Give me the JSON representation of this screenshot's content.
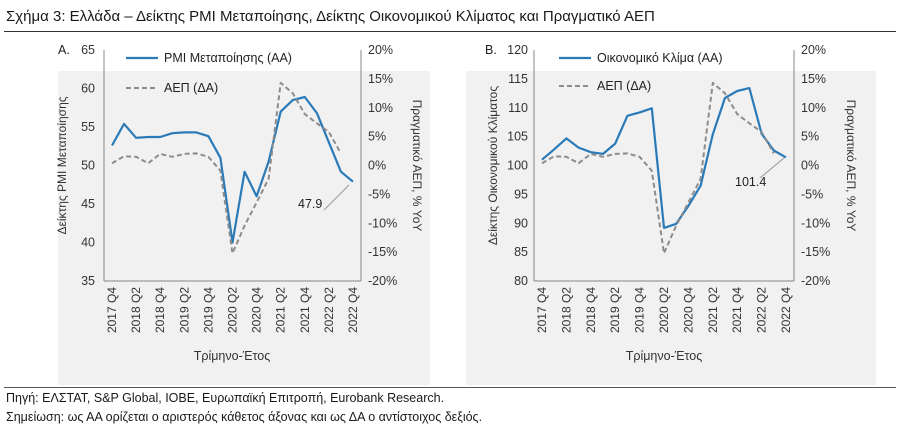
{
  "figure_title": "Σχήμα 3: Ελλάδα – Δείκτης PMI Μεταποίησης, Δείκτης Οικονομικού Κλίματος και Πραγματικό ΑΕΠ",
  "source_note": "Πηγή: ΕΛΣΤΑΤ, S&P Global, IOBE, Ευρωπαϊκή Επιτροπή, Eurobank Research.",
  "remark_note": "Σημείωση: ως ΑΑ ορίζεται ο αριστερός κάθετος άξονας και ως ΔΑ ο αντίστοιχος δεξιός.",
  "colors": {
    "primary_line": "#2a7ab8",
    "secondary_line": "#8c8c8c",
    "axis": "#888888",
    "panel_bg": "#f1f1f1"
  },
  "chart_data": [
    {
      "type": "line",
      "panel_label": "A.",
      "x": [
        "2017 Q4",
        "2018 Q1",
        "2018 Q2",
        "2018 Q3",
        "2018 Q4",
        "2019 Q1",
        "2019 Q2",
        "2019 Q3",
        "2019 Q4",
        "2020 Q1",
        "2020 Q2",
        "2020 Q3",
        "2020 Q4",
        "2021 Q1",
        "2021 Q2",
        "2021 Q3",
        "2021 Q4",
        "2022 Q1",
        "2022 Q2",
        "2022 Q3",
        "2022 Q4"
      ],
      "x_tick_labels": [
        "2017 Q4",
        "2018 Q2",
        "2018 Q4",
        "2019 Q2",
        "2019 Q4",
        "2020 Q2",
        "2020 Q4",
        "2021 Q2",
        "2021 Q4",
        "2022 Q2",
        "2022 Q4"
      ],
      "xlabel": "Τρίμηνο-Έτος",
      "ylabel_left": "Δείκτης PMI Μεταποίησης",
      "ylabel_right": "Πραγματικό ΑΕΠ, % YoY",
      "ylim_left": [
        35,
        65
      ],
      "yticks_left": [
        "35",
        "40",
        "45",
        "50",
        "55",
        "60",
        "65"
      ],
      "ylim_right": [
        -20,
        20
      ],
      "yticks_right": [
        "-20%",
        "-15%",
        "-10%",
        "-5%",
        "0%",
        "5%",
        "10%",
        "15%",
        "20%"
      ],
      "series": [
        {
          "name": "PMI Μεταποίησης (ΑΑ)",
          "axis": "left",
          "style": "solid",
          "values": [
            52.6,
            55.4,
            53.6,
            53.7,
            53.7,
            54.2,
            54.3,
            54.3,
            53.8,
            51.0,
            40.0,
            49.2,
            46.0,
            50.5,
            57.0,
            58.5,
            58.9,
            56.8,
            53.0,
            49.2,
            47.9
          ]
        },
        {
          "name": "ΑΕΠ (ΔΑ)",
          "axis": "right",
          "style": "dashed",
          "values": [
            0.4,
            1.6,
            1.5,
            0.4,
            2.0,
            1.5,
            2.0,
            2.1,
            1.5,
            -0.9,
            -15.2,
            -10.4,
            -6.4,
            -2.3,
            14.3,
            12.5,
            8.9,
            7.3,
            5.8,
            2.1,
            null
          ]
        }
      ],
      "annotation": "47.9"
    },
    {
      "type": "line",
      "panel_label": "B.",
      "x": [
        "2017 Q4",
        "2018 Q1",
        "2018 Q2",
        "2018 Q3",
        "2018 Q4",
        "2019 Q1",
        "2019 Q2",
        "2019 Q3",
        "2019 Q4",
        "2020 Q1",
        "2020 Q2",
        "2020 Q3",
        "2020 Q4",
        "2021 Q1",
        "2021 Q2",
        "2021 Q3",
        "2021 Q4",
        "2022 Q1",
        "2022 Q2",
        "2022 Q3",
        "2022 Q4"
      ],
      "x_tick_labels": [
        "2017 Q4",
        "2018 Q2",
        "2018 Q4",
        "2019 Q2",
        "2019 Q4",
        "2020 Q2",
        "2020 Q4",
        "2021 Q2",
        "2021 Q4",
        "2022 Q2",
        "2022 Q4"
      ],
      "xlabel": "Τρίμηνο-Έτος",
      "ylabel_left": "Δείκτης Οικονομικού Κλίματος",
      "ylabel_right": "Πραγματικό ΑΕΠ, % YoY",
      "ylim_left": [
        80,
        120
      ],
      "yticks_left": [
        "80",
        "85",
        "90",
        "95",
        "100",
        "105",
        "110",
        "115",
        "120"
      ],
      "ylim_right": [
        -20,
        20
      ],
      "yticks_right": [
        "-20%",
        "-15%",
        "-10%",
        "-5%",
        "0%",
        "5%",
        "10%",
        "15%",
        "20%"
      ],
      "series": [
        {
          "name": "Οικονομικό Κλίμα (ΑΑ)",
          "axis": "left",
          "style": "solid",
          "values": [
            101.0,
            102.8,
            104.7,
            103.1,
            102.3,
            102.0,
            103.8,
            108.6,
            109.2,
            109.9,
            89.2,
            89.9,
            93.0,
            96.5,
            105.4,
            111.7,
            112.9,
            113.4,
            105.5,
            102.6,
            101.4
          ]
        },
        {
          "name": "ΑΕΠ (ΔΑ)",
          "axis": "right",
          "style": "dashed",
          "values": [
            0.4,
            1.6,
            1.5,
            0.4,
            2.0,
            1.5,
            2.0,
            2.1,
            1.5,
            -0.9,
            -15.2,
            -10.4,
            -6.4,
            -2.3,
            14.3,
            12.5,
            8.9,
            7.3,
            5.8,
            2.1,
            null
          ]
        }
      ],
      "annotation": "101.4"
    }
  ]
}
